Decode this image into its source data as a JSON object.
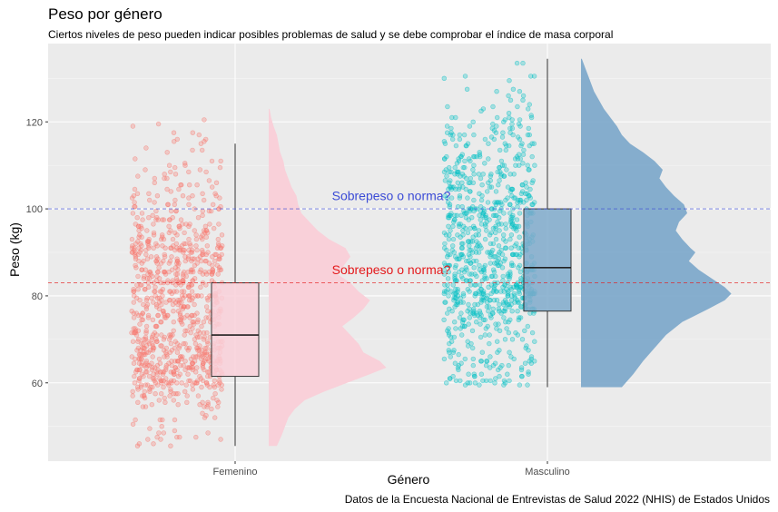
{
  "chart_data": {
    "type": "raincloud",
    "title": "Peso por género",
    "subtitle": "Ciertos niveles de peso pueden indicar posibles problemas de salud y se debe comprobar el índice de masa corporal",
    "caption": "Datos de la Encuesta Nacional de Entrevistas de Salud 2022 (NHIS) de Estados Unidos",
    "xlabel": "Género",
    "ylabel": "Peso (kg)",
    "ylim": [
      42,
      138
    ],
    "yticks": [
      60,
      80,
      100,
      120
    ],
    "categories": [
      "Femenino",
      "Masculino"
    ],
    "grid": true,
    "series": [
      {
        "category": "Femenino",
        "color": "#F8766D",
        "fill": "#F9D0D9",
        "box": {
          "min": 45.5,
          "q1": 61.5,
          "median": 71,
          "q3": 83,
          "max": 115
        },
        "points_range": [
          45.5,
          123
        ],
        "density": [
          [
            45.5,
            0.05
          ],
          [
            48,
            0.08
          ],
          [
            50,
            0.1
          ],
          [
            52,
            0.12
          ],
          [
            54,
            0.16
          ],
          [
            56,
            0.22
          ],
          [
            58,
            0.34
          ],
          [
            60,
            0.48
          ],
          [
            62,
            0.62
          ],
          [
            63.5,
            0.72
          ],
          [
            65,
            0.68
          ],
          [
            67,
            0.58
          ],
          [
            69,
            0.55
          ],
          [
            71,
            0.5
          ],
          [
            73,
            0.45
          ],
          [
            75,
            0.52
          ],
          [
            77,
            0.58
          ],
          [
            79,
            0.62
          ],
          [
            81,
            0.55
          ],
          [
            83,
            0.5
          ],
          [
            85,
            0.42
          ],
          [
            87,
            0.46
          ],
          [
            89,
            0.5
          ],
          [
            91,
            0.47
          ],
          [
            93,
            0.37
          ],
          [
            95,
            0.3
          ],
          [
            97,
            0.25
          ],
          [
            99,
            0.2
          ],
          [
            101,
            0.18
          ],
          [
            103,
            0.17
          ],
          [
            105,
            0.14
          ],
          [
            107,
            0.12
          ],
          [
            109,
            0.1
          ],
          [
            111,
            0.09
          ],
          [
            113,
            0.07
          ],
          [
            115,
            0.06
          ],
          [
            117,
            0.05
          ],
          [
            119,
            0.03
          ],
          [
            121,
            0.015
          ],
          [
            123,
            0.005
          ]
        ]
      },
      {
        "category": "Masculino",
        "color": "#00BFC4",
        "fill": "#7FAACB",
        "box": {
          "min": 59,
          "q1": 76.5,
          "median": 86.5,
          "q3": 100,
          "max": 134.5
        },
        "points_range": [
          59,
          134.5
        ],
        "density": [
          [
            59,
            0.25
          ],
          [
            62,
            0.32
          ],
          [
            65,
            0.38
          ],
          [
            68,
            0.45
          ],
          [
            71,
            0.52
          ],
          [
            74,
            0.62
          ],
          [
            77,
            0.78
          ],
          [
            79,
            0.88
          ],
          [
            80.5,
            0.92
          ],
          [
            82,
            0.88
          ],
          [
            84,
            0.8
          ],
          [
            86,
            0.72
          ],
          [
            88,
            0.66
          ],
          [
            90,
            0.7
          ],
          [
            91,
            0.67
          ],
          [
            93,
            0.62
          ],
          [
            95,
            0.58
          ],
          [
            97,
            0.6
          ],
          [
            99,
            0.65
          ],
          [
            101,
            0.63
          ],
          [
            103,
            0.57
          ],
          [
            105,
            0.52
          ],
          [
            107,
            0.48
          ],
          [
            109,
            0.5
          ],
          [
            111,
            0.45
          ],
          [
            113,
            0.38
          ],
          [
            115,
            0.3
          ],
          [
            117,
            0.25
          ],
          [
            119,
            0.22
          ],
          [
            121,
            0.18
          ],
          [
            123,
            0.14
          ],
          [
            125,
            0.11
          ],
          [
            127,
            0.08
          ],
          [
            129,
            0.06
          ],
          [
            131,
            0.04
          ],
          [
            133,
            0.02
          ],
          [
            134.5,
            0.005
          ]
        ]
      }
    ],
    "reference_lines": [
      {
        "y": 83,
        "color": "#E41A1C",
        "label": "Sobrepeso o norma?",
        "label_y": 85
      },
      {
        "y": 100,
        "color": "#3B4BD6",
        "label": "Sobrepeso o norma?",
        "label_y": 102
      }
    ]
  }
}
